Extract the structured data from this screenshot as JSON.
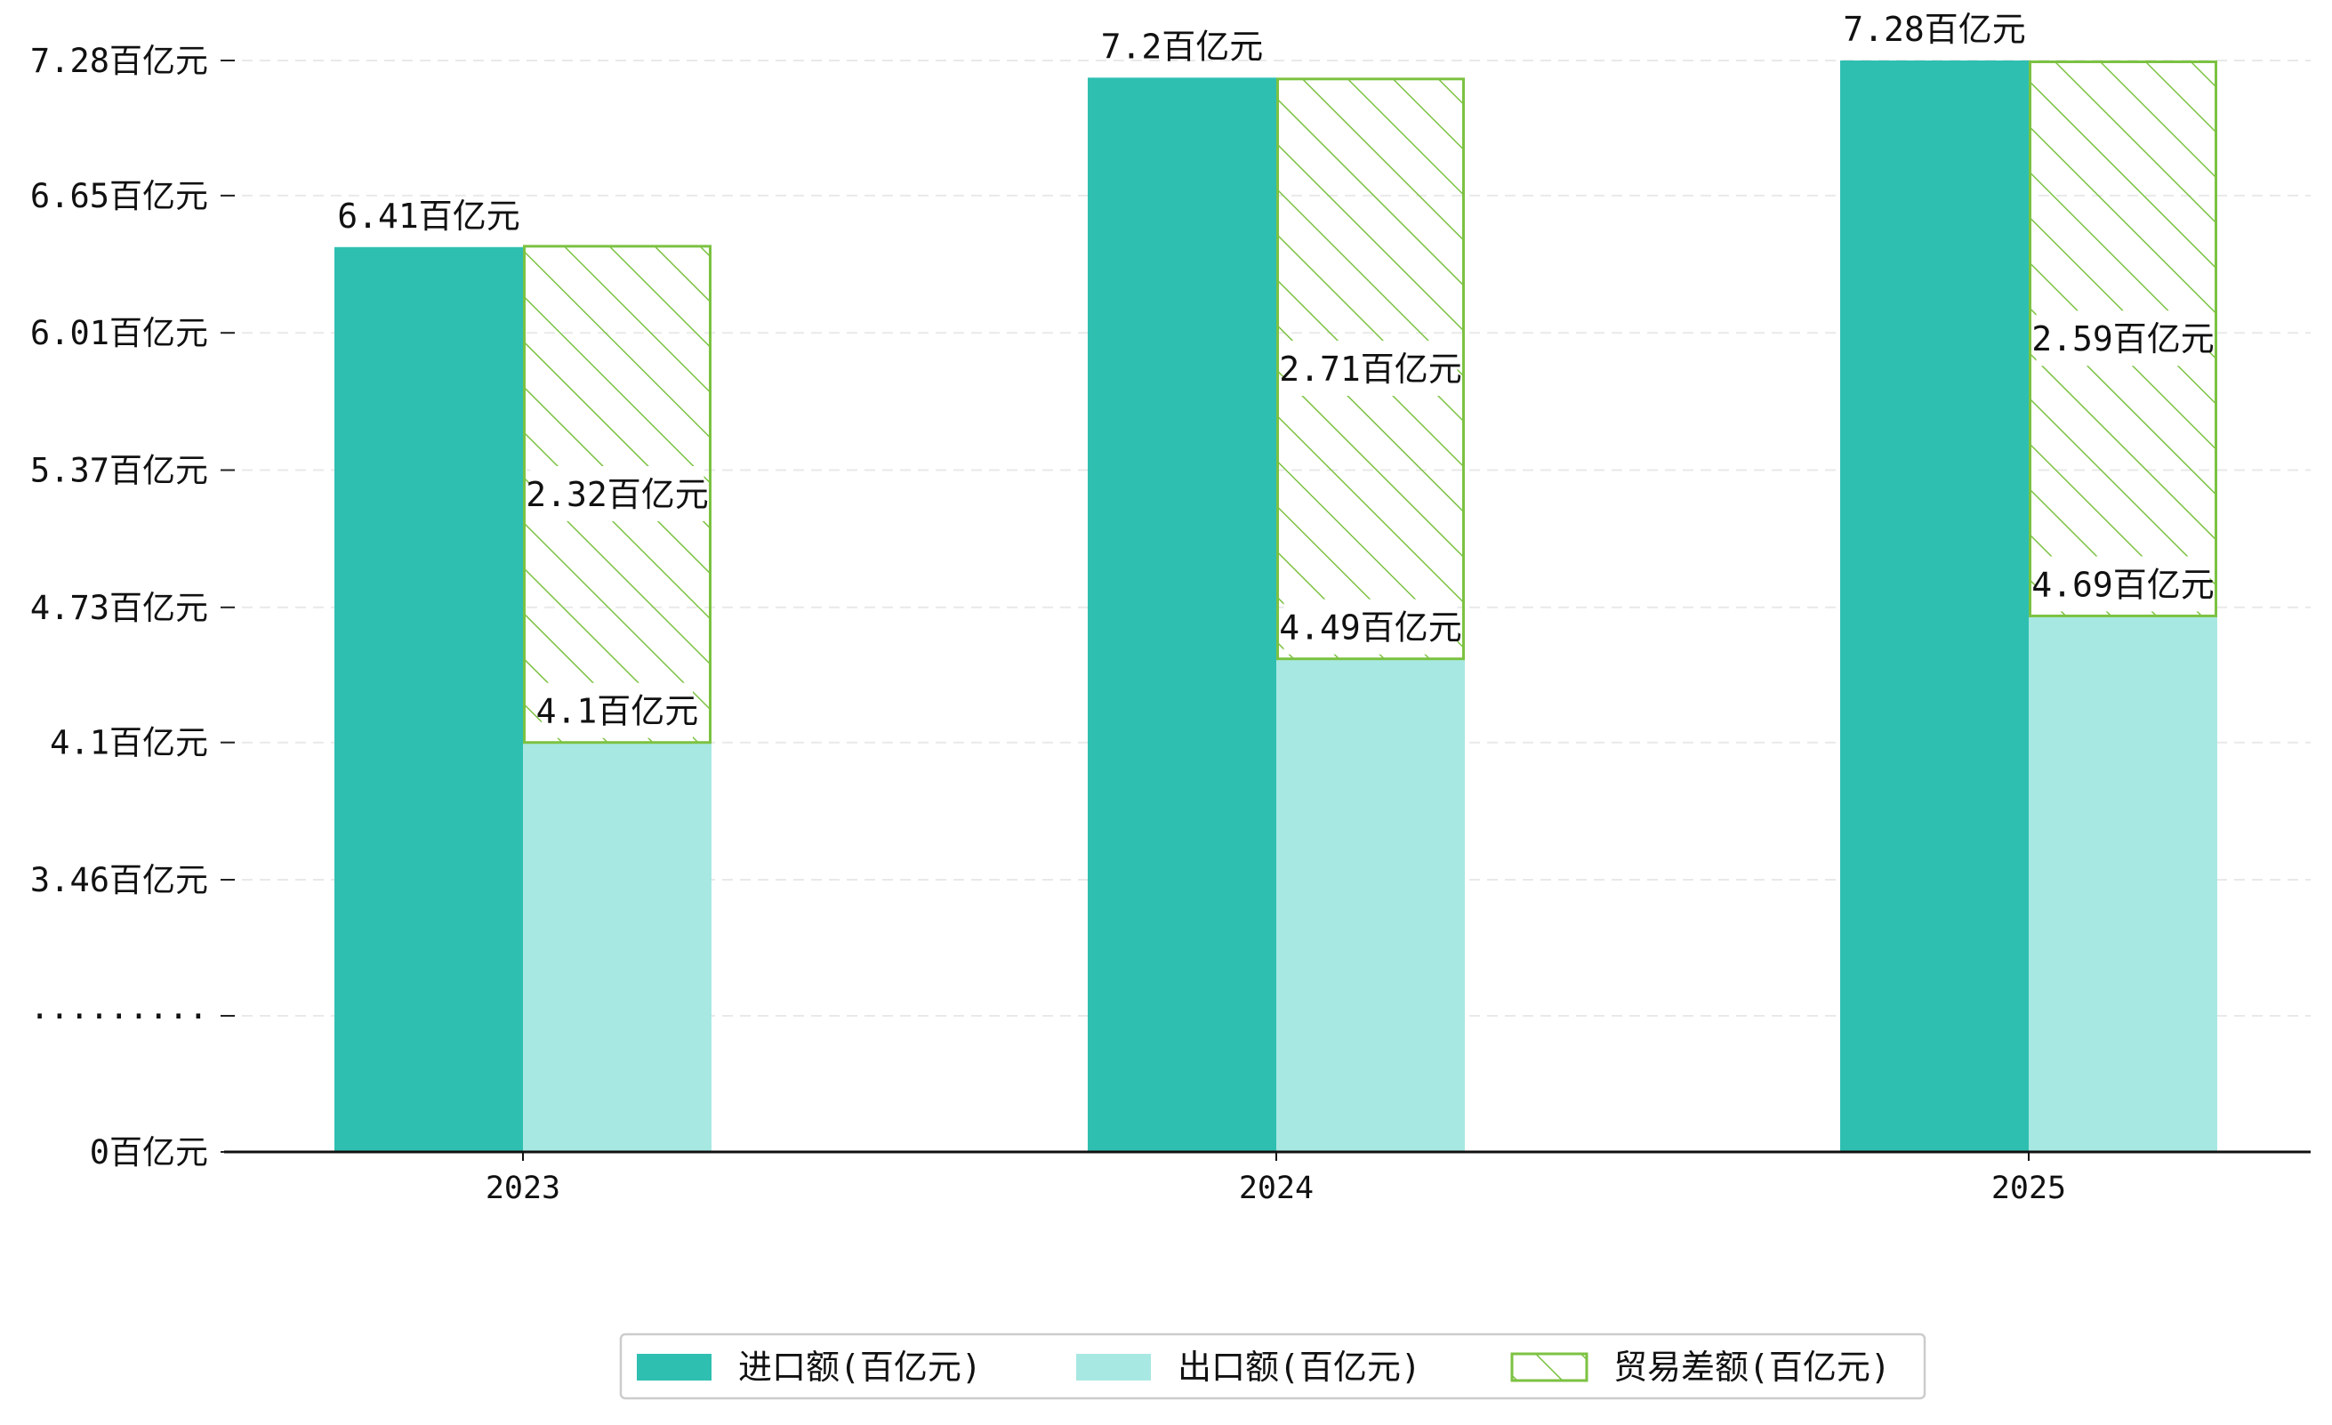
{
  "chart_data": {
    "type": "bar",
    "title": "",
    "xlabel": "",
    "ylabel": "",
    "categories": [
      "2023",
      "2024",
      "2025"
    ],
    "series": [
      {
        "name": "进口额(百亿元)",
        "values": [
          6.41,
          7.2,
          7.28
        ],
        "color": "#2ebfb1",
        "style": "solid"
      },
      {
        "name": "出口额(百亿元)",
        "values": [
          4.1,
          4.49,
          4.69
        ],
        "color": "#a8e8e2",
        "style": "solid"
      },
      {
        "name": "贸易差额(百亿元)",
        "values": [
          2.32,
          2.71,
          2.59
        ],
        "color": "#7cc242",
        "style": "hatch",
        "stacked_on": "出口额(百亿元)"
      }
    ],
    "value_labels": {
      "import": [
        "6.41百亿元",
        "7.2百亿元",
        "7.28百亿元"
      ],
      "export": [
        "4.1百亿元",
        "4.49百亿元",
        "4.69百亿元"
      ],
      "balance": [
        "2.32百亿元",
        "2.71百亿元",
        "2.59百亿元"
      ]
    },
    "y_axis": {
      "broken": true,
      "break_label": "·········",
      "ticks": [
        {
          "value": 0,
          "label": "0百亿元"
        },
        {
          "value": 3.46,
          "label": "3.46百亿元"
        },
        {
          "value": 4.1,
          "label": "4.1百亿元"
        },
        {
          "value": 4.73,
          "label": "4.73百亿元"
        },
        {
          "value": 5.37,
          "label": "5.37百亿元"
        },
        {
          "value": 6.01,
          "label": "6.01百亿元"
        },
        {
          "value": 6.65,
          "label": "6.65百亿元"
        },
        {
          "value": 7.28,
          "label": "7.28百亿元"
        }
      ]
    },
    "grid": "horizontal-dashed",
    "legend_position": "bottom-center"
  }
}
